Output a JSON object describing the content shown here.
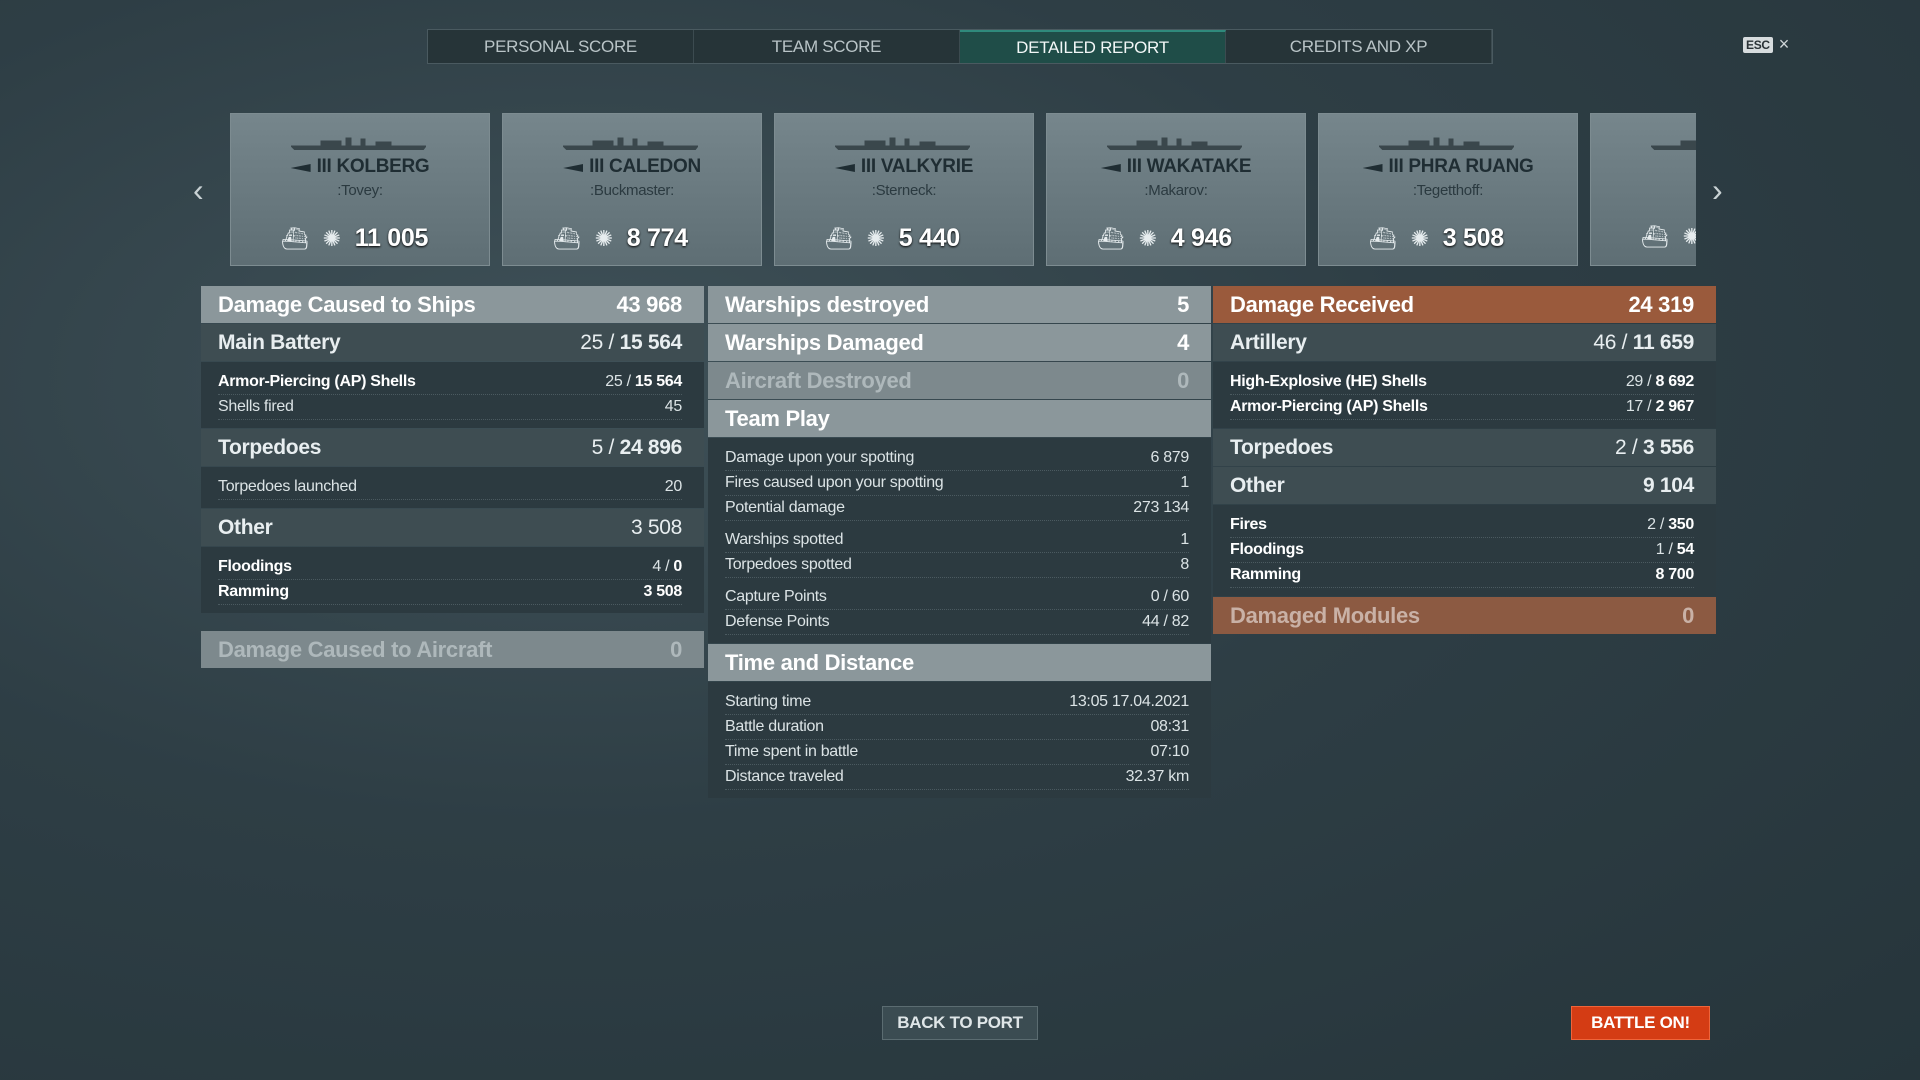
{
  "tabs": [
    "PERSONAL SCORE",
    "TEAM SCORE",
    "DETAILED REPORT",
    "CREDITS AND XP"
  ],
  "active_tab": 2,
  "esc": {
    "key": "ESC",
    "close": "×"
  },
  "nav": {
    "prev": "‹",
    "next": "›"
  },
  "ships": [
    {
      "tier_name": "III KOLBERG",
      "player": ":Tovey:",
      "damage": "11 005",
      "class": "cruiser"
    },
    {
      "tier_name": "III CALEDON",
      "player": ":Buckmaster:",
      "damage": "8 774",
      "class": "cruiser"
    },
    {
      "tier_name": "III VALKYRIE",
      "player": ":Sterneck:",
      "damage": "5 440",
      "class": "destroyer"
    },
    {
      "tier_name": "III WAKATAKE",
      "player": ":Makarov:",
      "damage": "4 946",
      "class": "destroyer"
    },
    {
      "tier_name": "III PHRA RUANG",
      "player": ":Tegetthoff:",
      "damage": "3 508",
      "class": "destroyer"
    },
    {
      "tier_name": "I",
      "player": ":N",
      "damage": "",
      "class": "cruiser"
    }
  ],
  "columns": [
    [
      {
        "type": "h",
        "label": "Damage Caused to Ships",
        "value": "43 968"
      },
      {
        "type": "s",
        "label": "Main Battery",
        "a": "25",
        "b": "15 564"
      },
      {
        "type": "d",
        "rows": [
          {
            "label": "Armor-Piercing (AP) Shells",
            "a": "25",
            "b": "15 564",
            "bold": true
          },
          {
            "label": "Shells fired",
            "value": "45"
          }
        ]
      },
      {
        "type": "s",
        "label": "Torpedoes",
        "a": "5",
        "b": "24 896"
      },
      {
        "type": "d",
        "rows": [
          {
            "label": "Torpedoes launched",
            "value": "20"
          }
        ]
      },
      {
        "type": "s",
        "label": "Other",
        "value": "3 508"
      },
      {
        "type": "d",
        "rows": [
          {
            "label": "Floodings",
            "a": "4",
            "b": "0",
            "bold": true
          },
          {
            "label": "Ramming",
            "value": "3 508",
            "bold": true,
            "boldval": true
          }
        ]
      },
      {
        "type": "h",
        "label": "Damage Caused to Aircraft",
        "value": "0",
        "dim": true,
        "gap": true
      }
    ],
    [
      {
        "type": "h",
        "label": "Warships destroyed",
        "value": "5"
      },
      {
        "type": "h",
        "label": "Warships Damaged",
        "value": "4"
      },
      {
        "type": "h",
        "label": "Aircraft Destroyed",
        "value": "0",
        "dim": true
      },
      {
        "type": "h",
        "label": "Team Play",
        "value": ""
      },
      {
        "type": "d",
        "rows": [
          {
            "label": "Damage upon your spotting",
            "value": "6 879"
          },
          {
            "label": "Fires caused upon your spotting",
            "value": "1"
          },
          {
            "label": "Potential damage",
            "value": "273 134"
          },
          {
            "label": "Warships spotted",
            "value": "1",
            "sp": true
          },
          {
            "label": "Torpedoes spotted",
            "value": "8"
          },
          {
            "label": "Capture Points",
            "value": "0 / 60",
            "sp": true
          },
          {
            "label": "Defense Points",
            "value": "44 / 82"
          }
        ]
      },
      {
        "type": "h",
        "label": "Time and Distance",
        "value": ""
      },
      {
        "type": "d",
        "rows": [
          {
            "label": "Starting time",
            "value": "13:05  17.04.2021"
          },
          {
            "label": "Battle duration",
            "value": "08:31"
          },
          {
            "label": "Time spent in battle",
            "value": "07:10"
          },
          {
            "label": "Distance traveled",
            "value": "32.37 km"
          }
        ]
      }
    ],
    [
      {
        "type": "h",
        "label": "Damage Received",
        "value": "24 319",
        "orange": true
      },
      {
        "type": "s",
        "label": "Artillery",
        "a": "46",
        "b": "11 659"
      },
      {
        "type": "d",
        "rows": [
          {
            "label": "High-Explosive (HE) Shells",
            "a": "29",
            "b": "8 692",
            "bold": true
          },
          {
            "label": "Armor-Piercing (AP) Shells",
            "a": "17",
            "b": "2 967",
            "bold": true
          }
        ]
      },
      {
        "type": "s",
        "label": "Torpedoes",
        "a": "2",
        "b": "3 556"
      },
      {
        "type": "s",
        "label": "Other",
        "value": "9 104",
        "boldval": true
      },
      {
        "type": "d",
        "rows": [
          {
            "label": "Fires",
            "a": "2",
            "b": "350",
            "bold": true
          },
          {
            "label": "Floodings",
            "a": "1",
            "b": "54",
            "bold": true
          },
          {
            "label": "Ramming",
            "value": "8 700",
            "bold": true,
            "boldval": true
          }
        ]
      },
      {
        "type": "h",
        "label": "Damaged Modules",
        "value": "0",
        "orange": true,
        "dim": true
      }
    ]
  ],
  "buttons": {
    "back": "BACK TO PORT",
    "battle": "BATTLE ON!"
  },
  "colors": {
    "accent_tab": "#1f4d48",
    "received": "#9a5a3c",
    "battle_button": "#d43c14"
  }
}
